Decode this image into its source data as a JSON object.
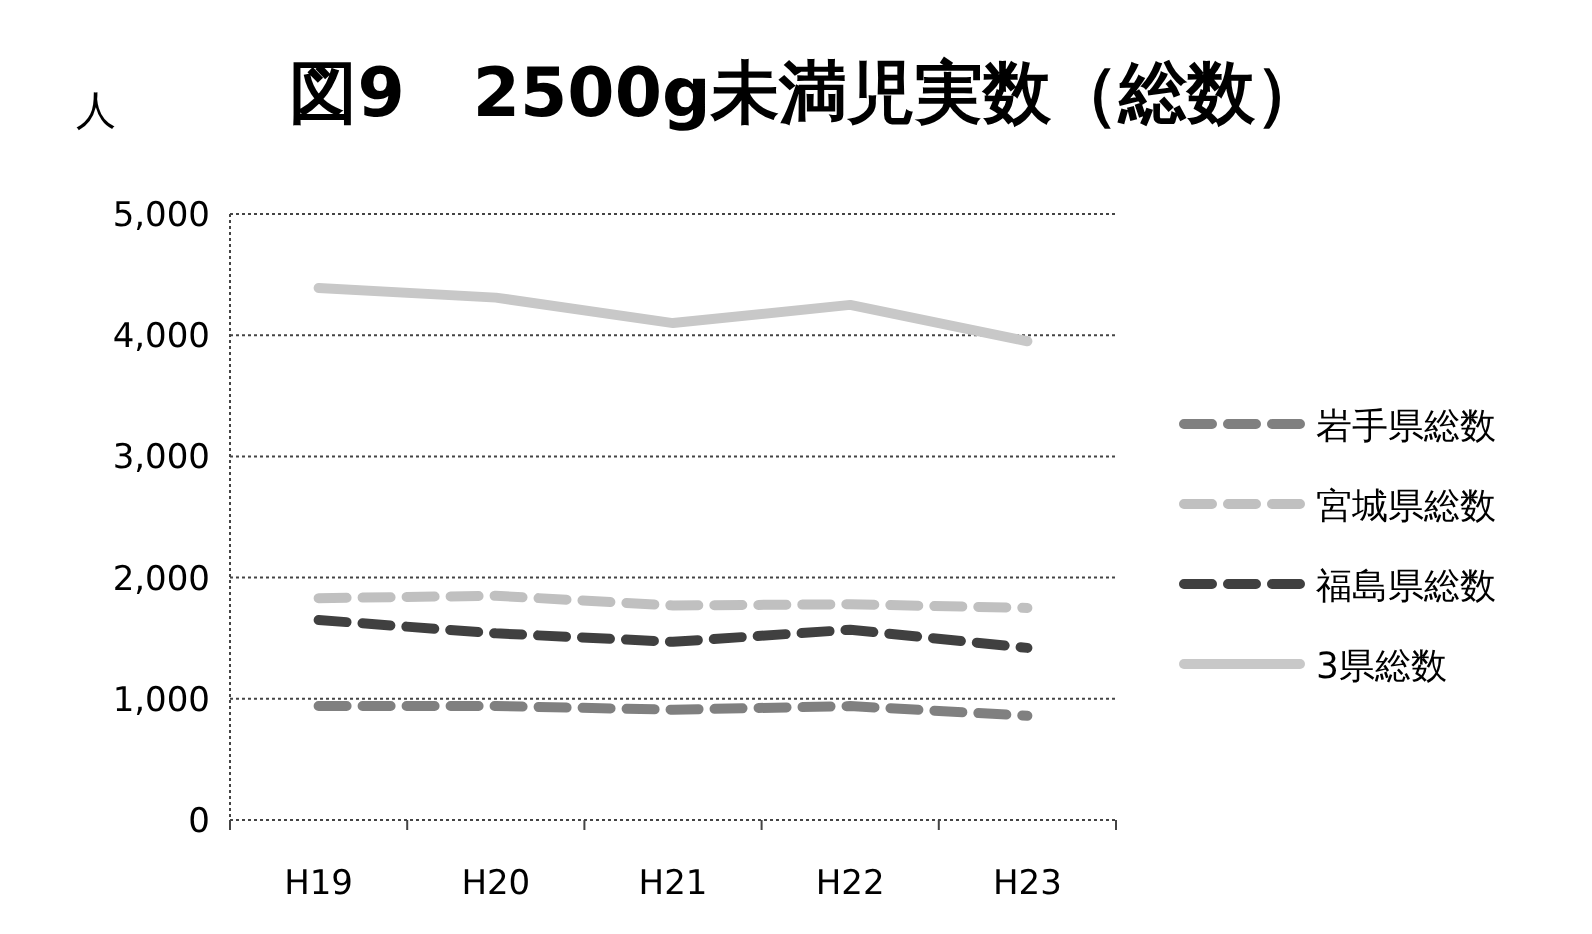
{
  "chart_data": {
    "type": "line",
    "title": "図9　2500g未満児実数（総数）",
    "ylabel": "人",
    "categories": [
      "H19",
      "H20",
      "H21",
      "H22",
      "H23"
    ],
    "ylim": [
      0,
      5000
    ],
    "yticks": [
      {
        "value": 0,
        "label": "0"
      },
      {
        "value": 1000,
        "label": "1,000"
      },
      {
        "value": 2000,
        "label": "2,000"
      },
      {
        "value": 3000,
        "label": "3,000"
      },
      {
        "value": 4000,
        "label": "4,000"
      },
      {
        "value": 5000,
        "label": "5,000"
      }
    ],
    "grid": "y",
    "legend": "right",
    "marker": "none",
    "series": [
      {
        "name": "岩手県総数",
        "color": "#808080",
        "line_style": "dashed",
        "values": [
          940,
          940,
          910,
          940,
          860
        ]
      },
      {
        "name": "宮城県総数",
        "color": "#c0c0c0",
        "line_style": "dashed",
        "values": [
          1830,
          1850,
          1770,
          1780,
          1750
        ]
      },
      {
        "name": "福島県総数",
        "color": "#404040",
        "line_style": "dashed",
        "values": [
          1650,
          1540,
          1470,
          1570,
          1420
        ]
      },
      {
        "name": "3県総数",
        "color": "#c8c8c8",
        "line_style": "solid",
        "values": [
          4390,
          4310,
          4100,
          4250,
          3950
        ]
      }
    ]
  }
}
